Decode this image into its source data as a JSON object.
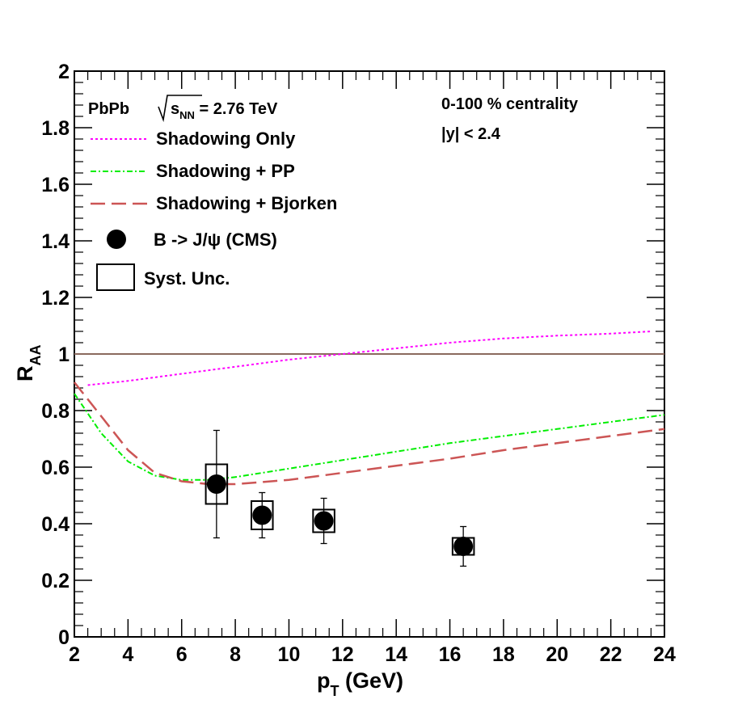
{
  "chart_data": {
    "type": "line",
    "xlabel": {
      "main": "p",
      "sub": "T",
      "unit": " (GeV)"
    },
    "ylabel": {
      "main": "R",
      "sub": "AA"
    },
    "xlim": [
      2,
      24
    ],
    "ylim": [
      0,
      2
    ],
    "xticks": [
      2,
      4,
      6,
      8,
      10,
      12,
      14,
      16,
      18,
      20,
      22,
      24
    ],
    "xtick_labels": [
      "2",
      "4",
      "6",
      "8",
      "10",
      "12",
      "14",
      "16",
      "18",
      "20",
      "22",
      "24"
    ],
    "yticks": [
      0,
      0.2,
      0.4,
      0.6,
      0.8,
      1,
      1.2,
      1.4,
      1.6,
      1.8,
      2
    ],
    "ytick_labels": [
      "0",
      "0.2",
      "0.4",
      "0.6",
      "0.8",
      "1",
      "1.2",
      "1.4",
      "1.6",
      "1.8",
      "2"
    ],
    "reference_line": {
      "y": 1,
      "color": "#8b6a5e"
    },
    "annotations": {
      "system": "PbPb",
      "energy_prefix": "s",
      "energy_sub": "NN",
      "energy_value": " = 2.76 TeV",
      "centrality": "0-100 % centrality",
      "rapidity": "|y| < 2.4"
    },
    "series": [
      {
        "name": "Shadowing Only",
        "color": "#ff00ff",
        "style": "dotted",
        "x": [
          2.5,
          4,
          6,
          8,
          10,
          12,
          14,
          16,
          18,
          20,
          22,
          23.5
        ],
        "y": [
          0.89,
          0.905,
          0.93,
          0.955,
          0.98,
          1.0,
          1.02,
          1.04,
          1.055,
          1.065,
          1.072,
          1.08
        ]
      },
      {
        "name": "Shadowing + PP",
        "color": "#00ee00",
        "style": "dashdot",
        "x": [
          2,
          3,
          4,
          5,
          6,
          7,
          8,
          10,
          12,
          14,
          16,
          18,
          20,
          22,
          24
        ],
        "y": [
          0.86,
          0.72,
          0.62,
          0.57,
          0.555,
          0.555,
          0.565,
          0.595,
          0.625,
          0.655,
          0.685,
          0.71,
          0.735,
          0.76,
          0.785
        ]
      },
      {
        "name": "Shadowing + Bjorken",
        "color": "#cc5555",
        "style": "longdash",
        "x": [
          2,
          3,
          4,
          5,
          6,
          7,
          8,
          10,
          12,
          14,
          16,
          18,
          20,
          22,
          24
        ],
        "y": [
          0.9,
          0.78,
          0.66,
          0.58,
          0.55,
          0.54,
          0.54,
          0.555,
          0.58,
          0.605,
          0.63,
          0.66,
          0.685,
          0.71,
          0.735
        ]
      }
    ],
    "data_points": {
      "name": "B -> J/ψ (CMS)",
      "x": [
        7.3,
        9,
        11.3,
        16.5
      ],
      "y": [
        0.54,
        0.43,
        0.41,
        0.32
      ],
      "stat_err": [
        0.19,
        0.08,
        0.08,
        0.07
      ],
      "syst_box_xhalf": [
        0.4,
        0.4,
        0.4,
        0.4
      ],
      "syst_err": [
        0.07,
        0.05,
        0.04,
        0.03
      ]
    },
    "legend": {
      "entries": [
        "Shadowing Only",
        "Shadowing + PP",
        "Shadowing + Bjorken",
        "B -> J/ψ (CMS)",
        "Syst. Unc."
      ],
      "position": "top-left"
    }
  }
}
